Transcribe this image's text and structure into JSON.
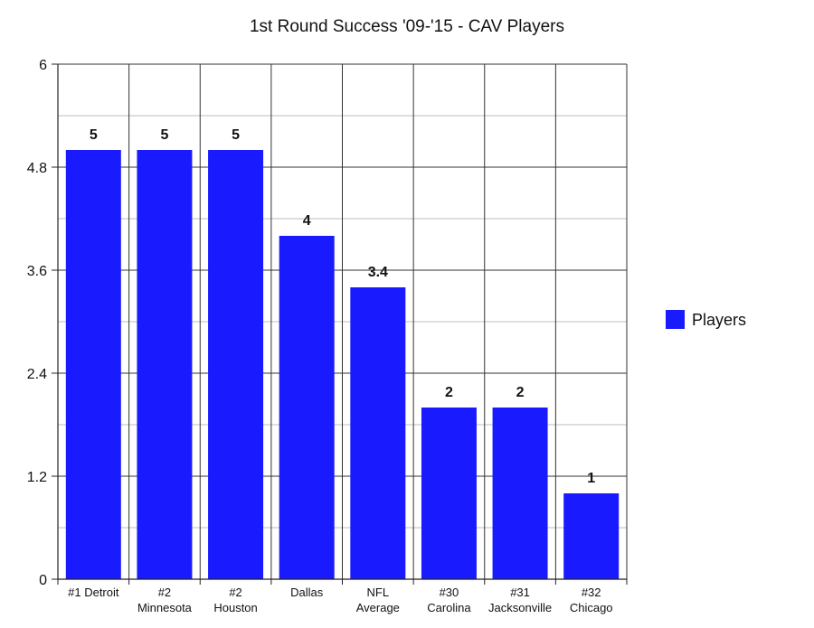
{
  "chart_data": {
    "type": "bar",
    "title": "1st Round Success '09-'15 - CAV Players",
    "categories": [
      [
        "#1 Detroit"
      ],
      [
        "#2",
        "Minnesota"
      ],
      [
        "#2",
        "Houston"
      ],
      [
        "Dallas"
      ],
      [
        "NFL",
        "Average"
      ],
      [
        "#30",
        "Carolina"
      ],
      [
        "#31",
        "Jacksonville"
      ],
      [
        "#32",
        "Chicago"
      ]
    ],
    "series": [
      {
        "name": "Players",
        "values": [
          5,
          5,
          5,
          4,
          3.4,
          2,
          2,
          1
        ],
        "color": "#1a1aff"
      }
    ],
    "data_labels": [
      "5",
      "5",
      "5",
      "4",
      "3.4",
      "2",
      "2",
      "1"
    ],
    "ylim": [
      0,
      6
    ],
    "yticks": [
      0,
      1.2,
      2.4,
      3.6,
      4.8,
      6
    ],
    "ytick_labels": [
      "0",
      "1.2",
      "2.4",
      "3.6",
      "4.8",
      "6"
    ],
    "minor_grid": true,
    "grid": true,
    "legend_position": "right"
  }
}
